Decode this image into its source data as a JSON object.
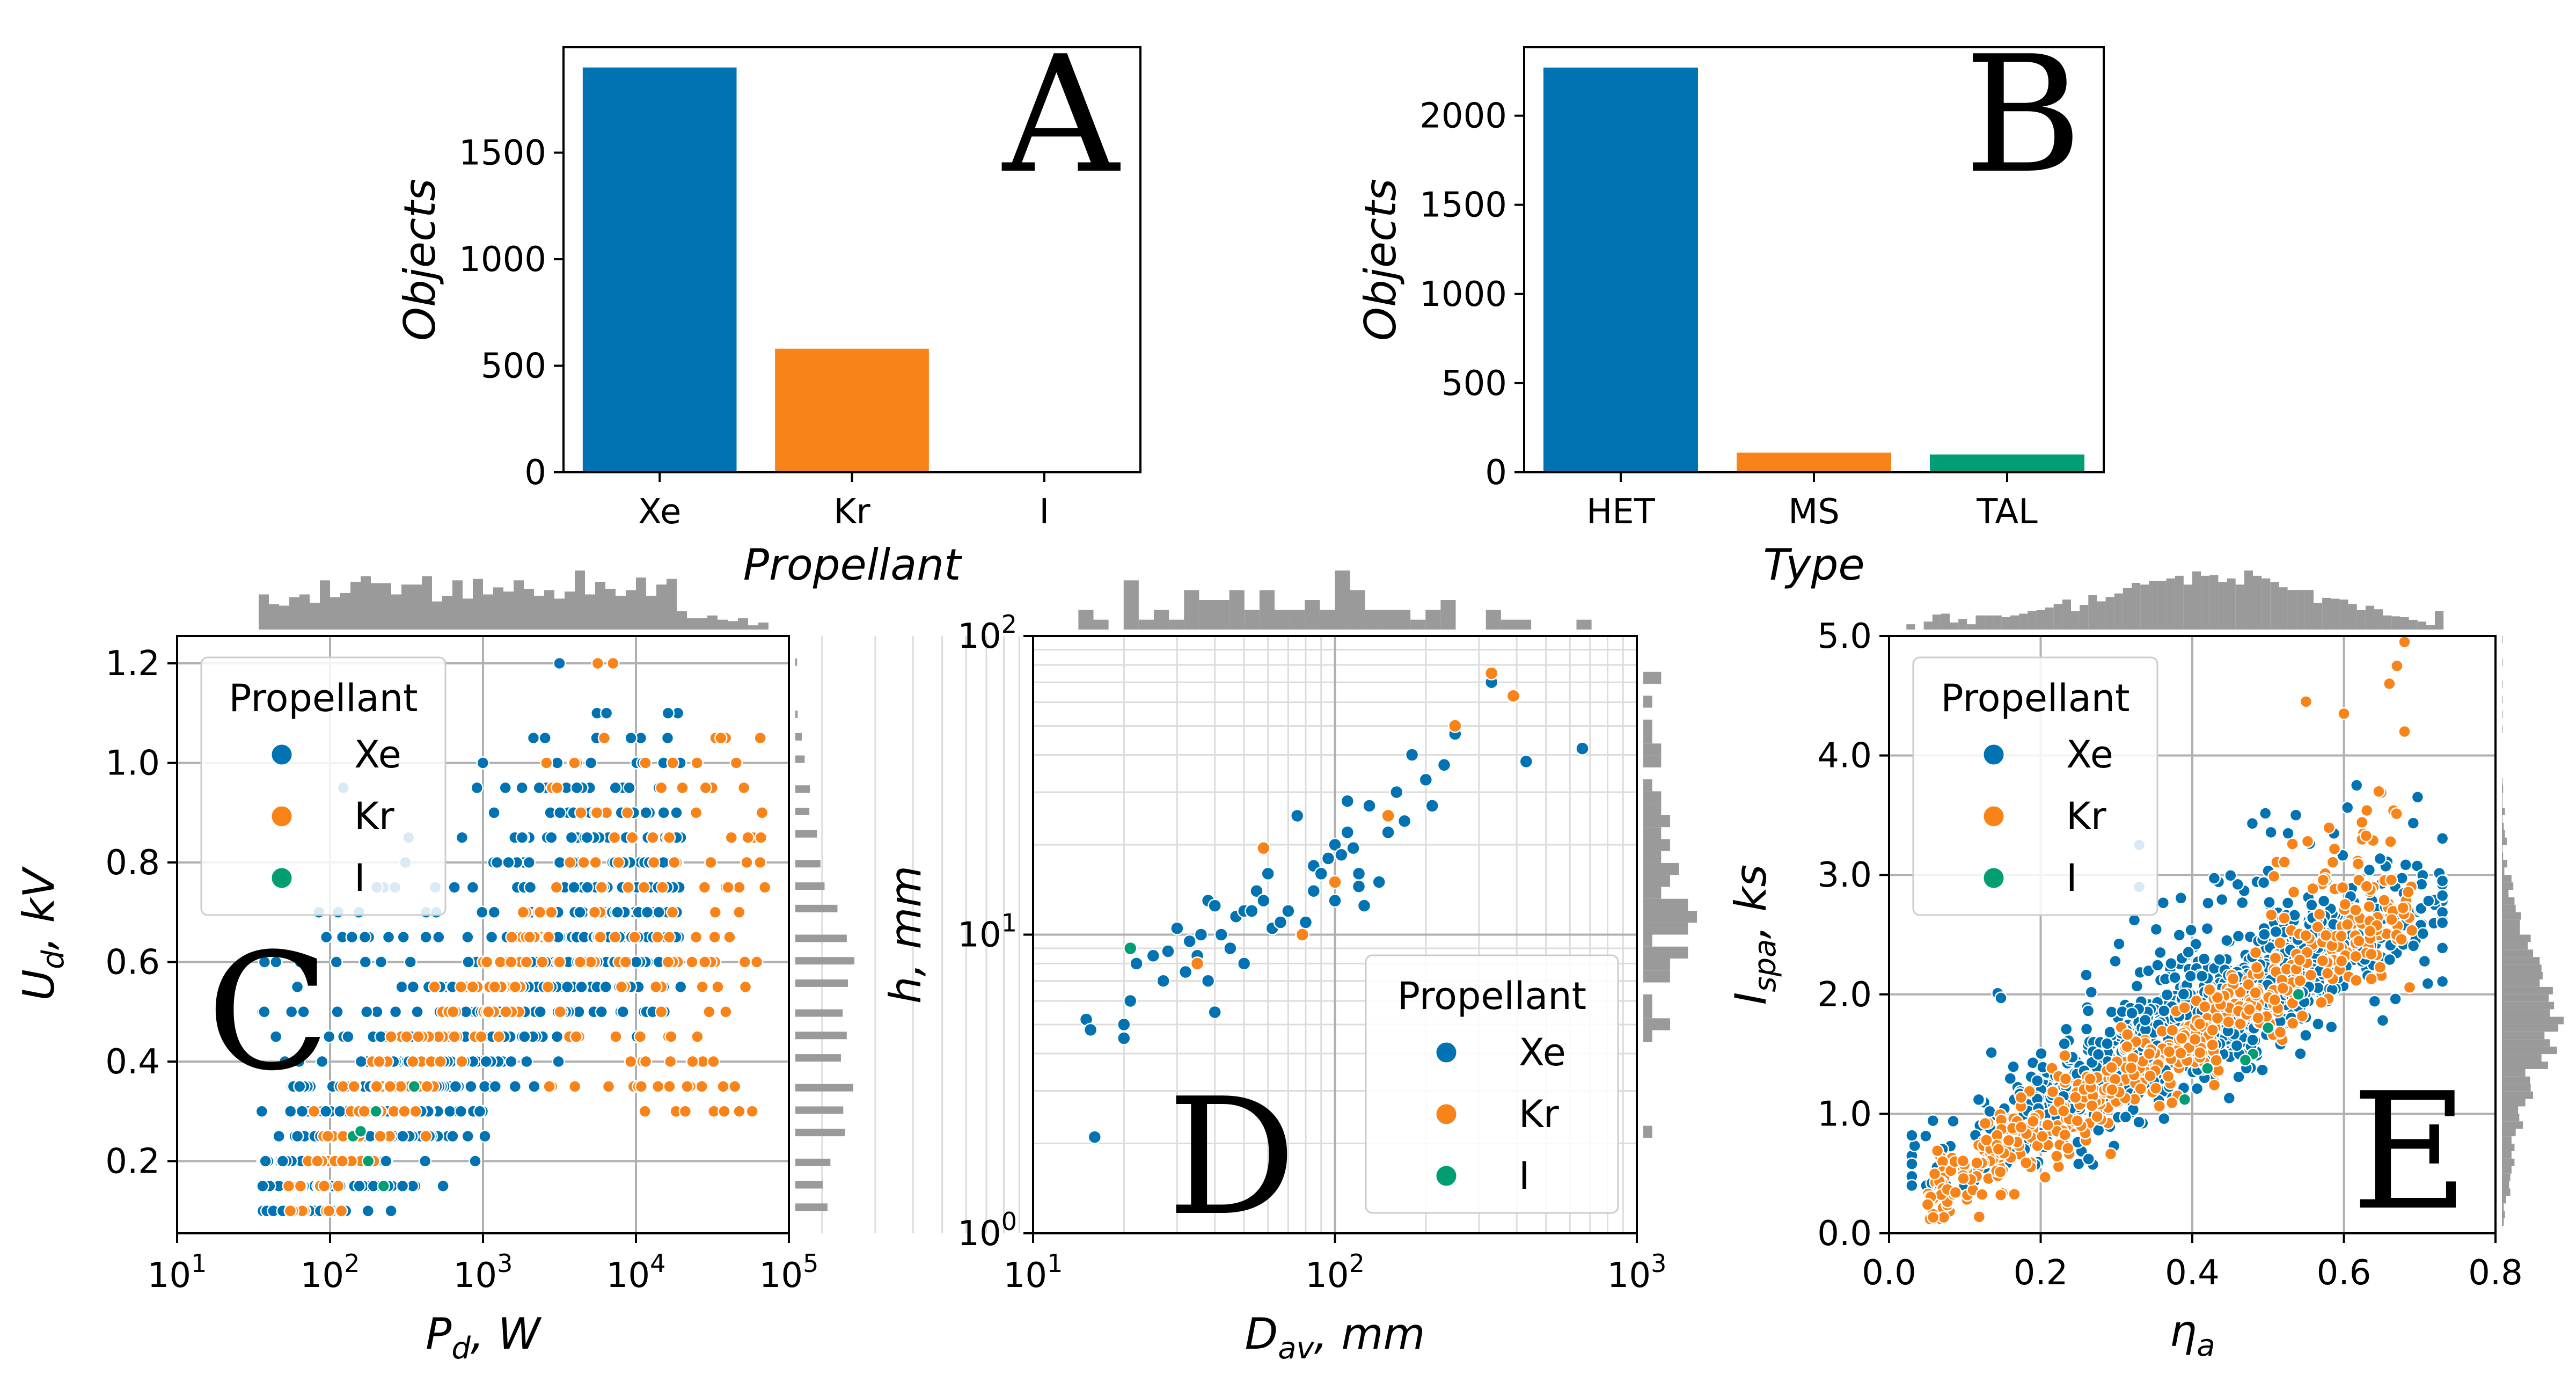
{
  "colors": {
    "Xe": "#0173b2",
    "Kr": "#f88318",
    "I": "#029e73",
    "hist": "#9a9a9a"
  },
  "chart_data": [
    {
      "id": "A",
      "type": "bar",
      "panel_label": "A",
      "categories": [
        "Xe",
        "Kr",
        "I"
      ],
      "values": [
        1900,
        580,
        0
      ],
      "colors": [
        "#0173b2",
        "#f88318",
        "#029e73"
      ],
      "xlabel": "Propellant",
      "ylabel": "Objects",
      "ylim": [
        0,
        1995
      ],
      "yticks": [
        0,
        500,
        1000,
        1500
      ]
    },
    {
      "id": "B",
      "type": "bar",
      "panel_label": "B",
      "categories": [
        "HET",
        "MS",
        "TAL"
      ],
      "values": [
        2270,
        110,
        100
      ],
      "colors": [
        "#0173b2",
        "#f88318",
        "#029e73"
      ],
      "xlabel": "Type",
      "ylabel": "Objects",
      "ylim": [
        0,
        2384
      ],
      "yticks": [
        0,
        500,
        1000,
        1500,
        2000
      ]
    },
    {
      "id": "C",
      "type": "scatter",
      "panel_label": "C",
      "xscale": "log",
      "xlim": [
        10,
        100000
      ],
      "ylim": [
        0.055,
        1.255
      ],
      "xlabel": "P_d, W",
      "ylabel": "U_d, kV",
      "xlabel_parts": {
        "var": "P",
        "sub": "d",
        "unit": ", W"
      },
      "ylabel_parts": {
        "var": "U",
        "sub": "d",
        "unit": ", kV"
      },
      "xticks": [
        {
          "base": "10",
          "exp": "1"
        },
        {
          "base": "10",
          "exp": "2"
        },
        {
          "base": "10",
          "exp": "3"
        },
        {
          "base": "10",
          "exp": "4"
        },
        {
          "base": "10",
          "exp": "5"
        }
      ],
      "ytick_values": [
        0.2,
        0.4,
        0.6,
        0.8,
        1.0,
        1.2
      ],
      "yticks": [
        "0.2",
        "0.4",
        "0.6",
        "0.8",
        "1.0",
        "1.2"
      ],
      "legend": {
        "title": "Propellant",
        "entries": [
          "Xe",
          "Kr",
          "I"
        ],
        "location": "upper-left"
      },
      "marginal_histograms": {
        "top": true,
        "right": true
      }
    },
    {
      "id": "D",
      "type": "scatter",
      "panel_label": "D",
      "xscale": "log",
      "yscale": "log",
      "xlim": [
        10,
        1000
      ],
      "ylim": [
        1,
        100
      ],
      "xlabel": "D_av, mm",
      "ylabel": "h, mm",
      "xlabel_parts": {
        "var": "D",
        "sub": "av",
        "unit": ", mm"
      },
      "ylabel_parts": {
        "var": "h",
        "sub": "",
        "unit": ", mm"
      },
      "xticks": [
        {
          "base": "10",
          "exp": "1"
        },
        {
          "base": "10",
          "exp": "2"
        },
        {
          "base": "10",
          "exp": "3"
        }
      ],
      "yticks": [
        {
          "base": "10",
          "exp": "0"
        },
        {
          "base": "10",
          "exp": "1"
        },
        {
          "base": "10",
          "exp": "2"
        }
      ],
      "legend": {
        "title": "Propellant",
        "entries": [
          "Xe",
          "Kr",
          "I"
        ],
        "location": "lower-right"
      },
      "marginal_histograms": {
        "top": true,
        "right": true
      },
      "series": [
        {
          "name": "Xe",
          "points": [
            [
              15,
              5.2
            ],
            [
              15.5,
              4.8
            ],
            [
              16,
              2.1
            ],
            [
              20,
              5
            ],
            [
              20,
              4.5
            ],
            [
              21,
              6
            ],
            [
              22,
              8
            ],
            [
              25,
              8.5
            ],
            [
              27,
              7
            ],
            [
              28,
              8.8
            ],
            [
              30,
              10.5
            ],
            [
              32,
              7.5
            ],
            [
              33,
              9.5
            ],
            [
              35,
              8.5
            ],
            [
              36,
              10
            ],
            [
              38,
              13
            ],
            [
              38,
              7
            ],
            [
              40,
              12.5
            ],
            [
              40,
              5.5
            ],
            [
              42,
              10
            ],
            [
              45,
              9
            ],
            [
              47,
              11.5
            ],
            [
              50,
              8
            ],
            [
              50,
              12
            ],
            [
              53,
              12
            ],
            [
              55,
              14
            ],
            [
              58,
              13
            ],
            [
              60,
              16
            ],
            [
              62,
              10.5
            ],
            [
              66,
              11
            ],
            [
              70,
              12
            ],
            [
              75,
              25
            ],
            [
              80,
              11
            ],
            [
              85,
              14
            ],
            [
              85,
              17
            ],
            [
              90,
              16
            ],
            [
              95,
              18
            ],
            [
              100,
              20
            ],
            [
              100,
              13
            ],
            [
              105,
              18.5
            ],
            [
              110,
              22
            ],
            [
              110,
              28
            ],
            [
              115,
              19.5
            ],
            [
              120,
              16
            ],
            [
              120,
              14.5
            ],
            [
              125,
              12.5
            ],
            [
              130,
              27
            ],
            [
              140,
              15
            ],
            [
              150,
              22
            ],
            [
              160,
              30
            ],
            [
              170,
              24
            ],
            [
              180,
              40
            ],
            [
              200,
              33
            ],
            [
              210,
              27
            ],
            [
              230,
              37
            ],
            [
              250,
              47
            ],
            [
              330,
              70
            ],
            [
              430,
              38
            ],
            [
              660,
              42
            ]
          ]
        },
        {
          "name": "Kr",
          "points": [
            [
              35,
              8
            ],
            [
              58,
              19.5
            ],
            [
              78,
              10
            ],
            [
              100,
              15
            ],
            [
              150,
              25
            ],
            [
              250,
              50
            ],
            [
              330,
              75
            ],
            [
              390,
              63
            ]
          ]
        },
        {
          "name": "I",
          "points": [
            [
              21,
              9
            ]
          ]
        }
      ]
    },
    {
      "id": "E",
      "type": "scatter",
      "panel_label": "E",
      "xlim": [
        0,
        0.8
      ],
      "ylim": [
        0,
        5.0
      ],
      "xlabel": "η_a",
      "ylabel": "I_spa, ks",
      "xlabel_parts": {
        "var": "η",
        "sub": "a",
        "unit": ""
      },
      "ylabel_parts": {
        "var": "I",
        "sub": "spa",
        "unit": ", ks"
      },
      "xtick_values": [
        0,
        0.2,
        0.4,
        0.6,
        0.8
      ],
      "xticks": [
        "0.0",
        "0.2",
        "0.4",
        "0.6",
        "0.8"
      ],
      "ytick_values": [
        0,
        1,
        2,
        3,
        4,
        5
      ],
      "yticks": [
        "0.0",
        "1.0",
        "2.0",
        "3.0",
        "4.0",
        "5.0"
      ],
      "legend": {
        "title": "Propellant",
        "entries": [
          "Xe",
          "Kr",
          "I"
        ],
        "location": "upper-left"
      },
      "marginal_histograms": {
        "top": true,
        "right": true
      }
    }
  ]
}
